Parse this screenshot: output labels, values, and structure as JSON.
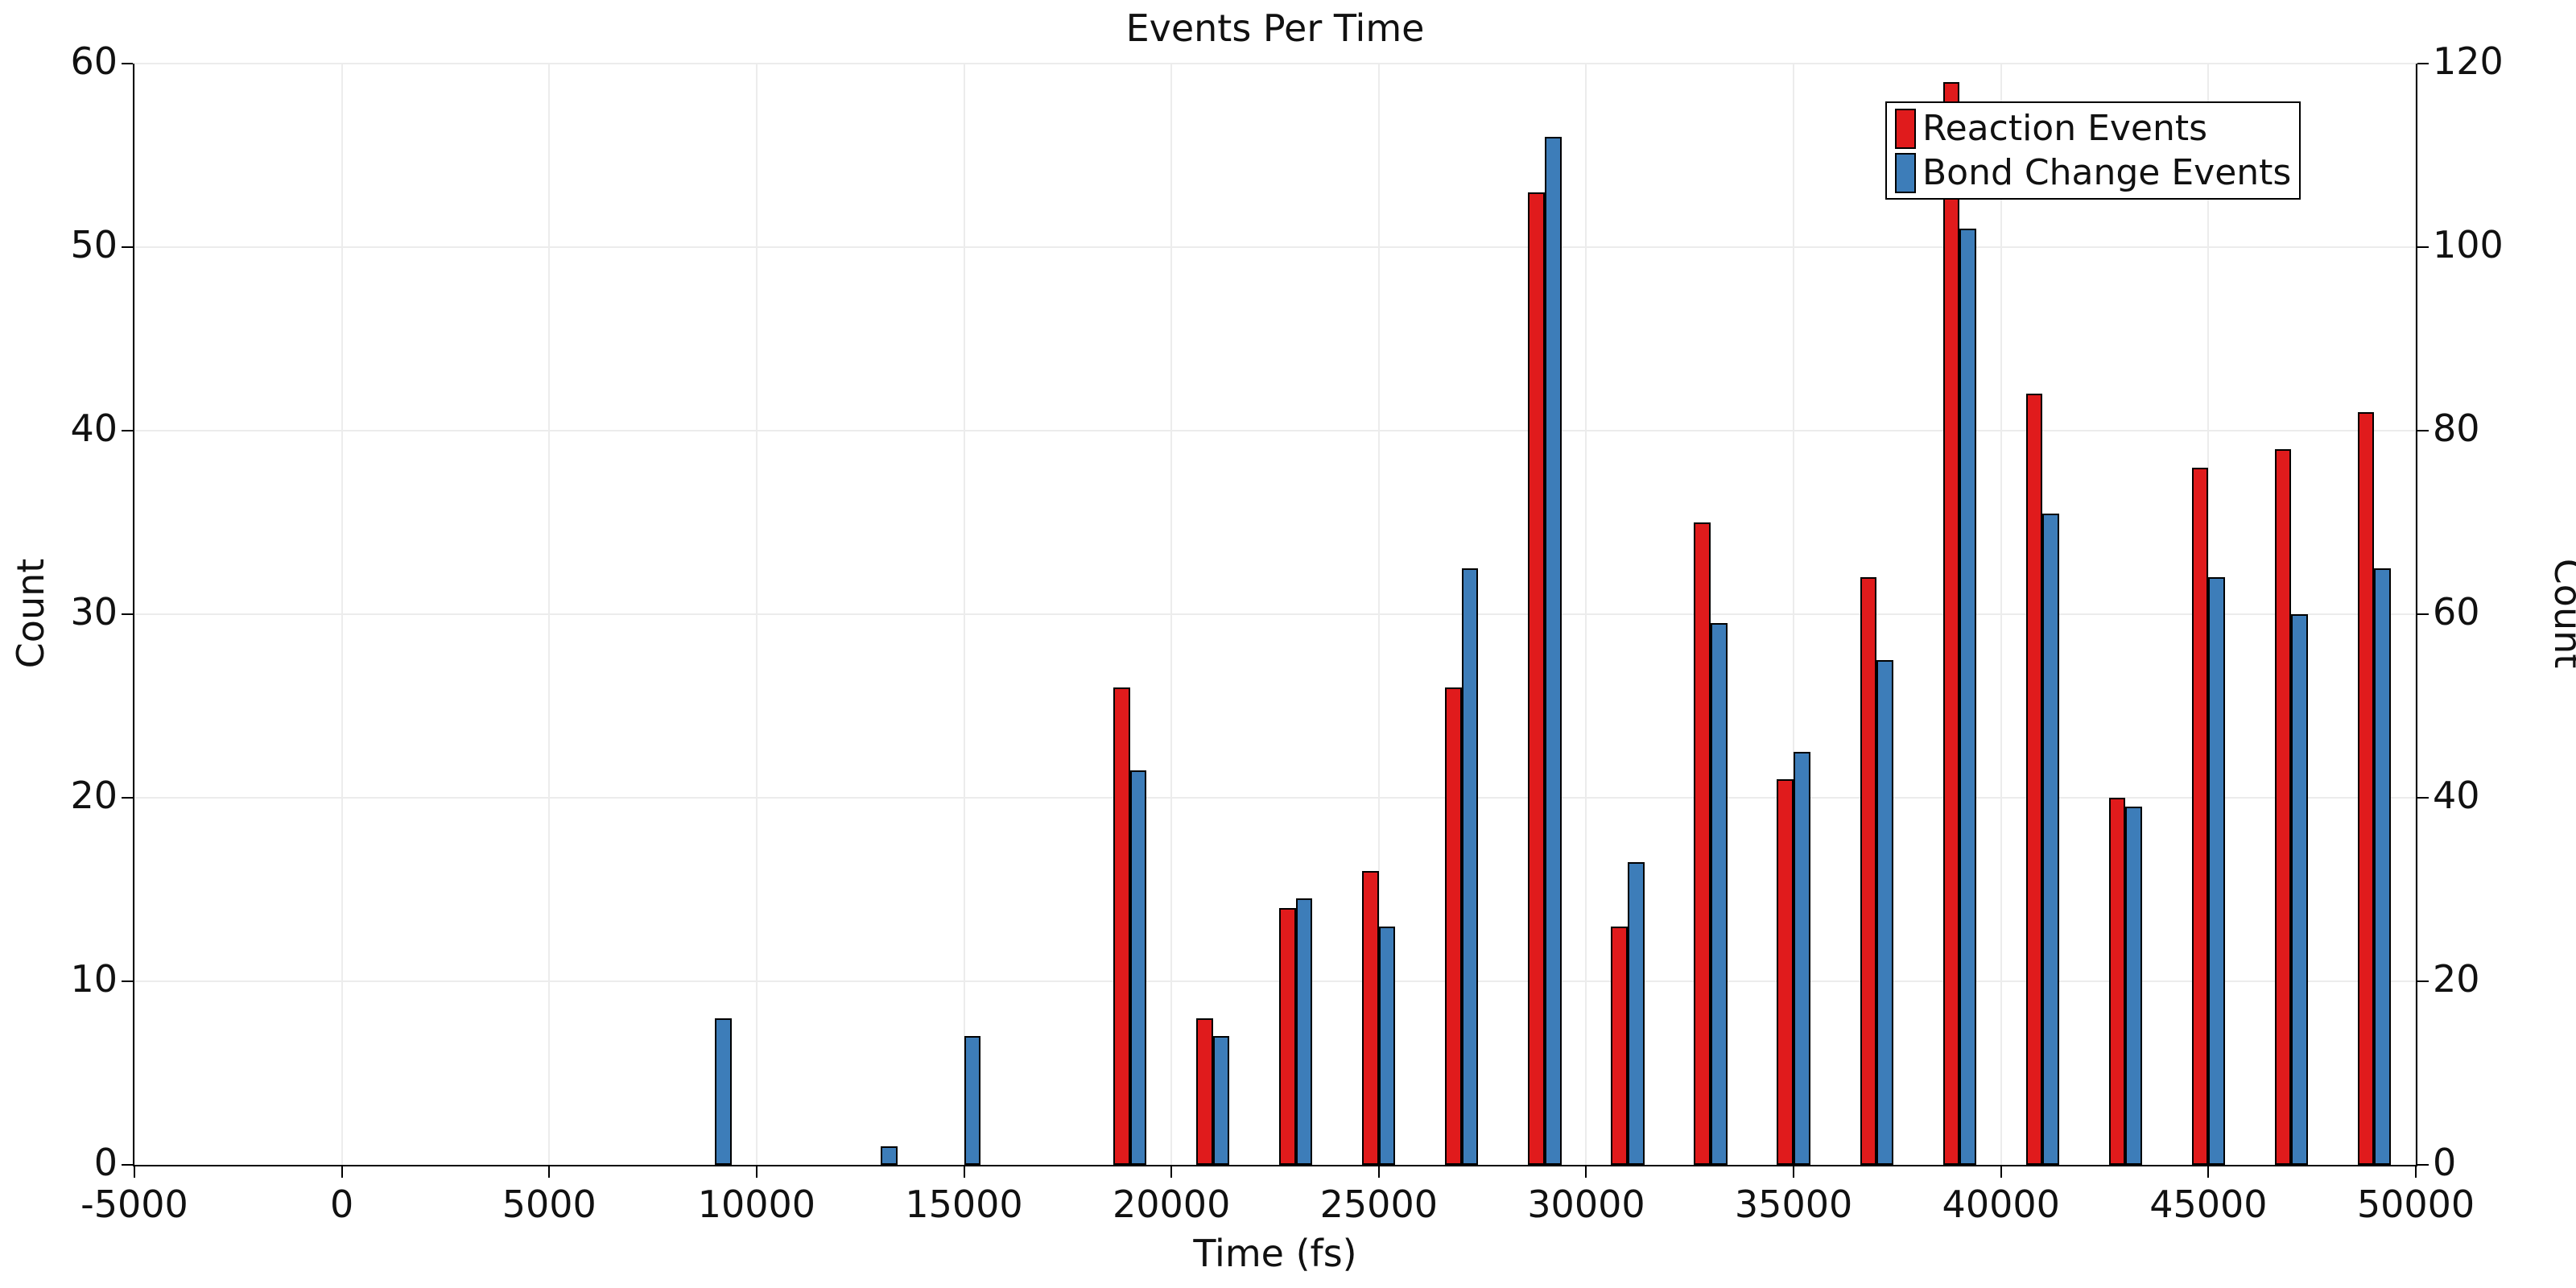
{
  "chart_data": {
    "type": "bar",
    "title": "Events Per Time",
    "xlabel": "Time (fs)",
    "ylabel_left": "Count",
    "ylabel_right": "Count",
    "grid": true,
    "legend_position": "upper right",
    "x_axis": {
      "min": -5000,
      "max": 50000,
      "ticks": [
        -5000,
        0,
        5000,
        10000,
        15000,
        20000,
        25000,
        30000,
        35000,
        40000,
        45000,
        50000
      ]
    },
    "y_left": {
      "min": 0,
      "max": 60,
      "ticks": [
        0,
        10,
        20,
        30,
        40,
        50,
        60
      ]
    },
    "y_right": {
      "min": 0,
      "max": 120,
      "ticks": [
        0,
        20,
        40,
        60,
        80,
        100,
        120
      ]
    },
    "bin_centers_fs": [
      9000,
      13000,
      15000,
      19000,
      21000,
      23000,
      25000,
      27000,
      29000,
      31000,
      33000,
      35000,
      37000,
      39000,
      41000,
      43000,
      45000,
      47000,
      49000
    ],
    "bar_width_fs": 400,
    "series": [
      {
        "name": "Reaction Events",
        "axis": "left",
        "color": "#e01b1c",
        "values": [
          0,
          0,
          0,
          26,
          8,
          14,
          16,
          26,
          53,
          13,
          35,
          21,
          32,
          59,
          42,
          20,
          38,
          39,
          41
        ]
      },
      {
        "name": "Bond Change Events",
        "axis": "right",
        "color": "#3d7db9",
        "values": [
          16,
          2,
          14,
          43,
          14,
          29,
          26,
          65,
          112,
          33,
          59,
          45,
          55,
          102,
          71,
          39,
          64,
          60,
          65
        ]
      }
    ],
    "colors": {
      "bar_edge": "#000000",
      "grid": "#ececec",
      "spine": "#000000",
      "background": "#ffffff"
    }
  }
}
